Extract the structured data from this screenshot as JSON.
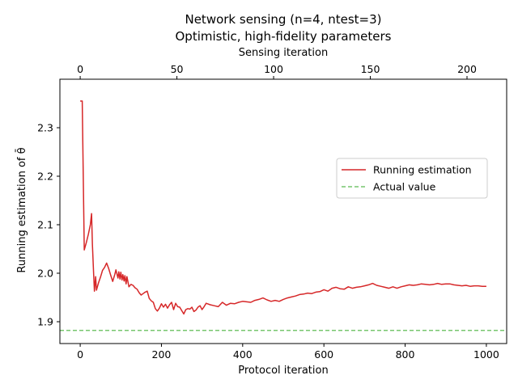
{
  "chart_data": {
    "type": "line",
    "title": "Network sensing (n=4, ntest=3)",
    "subtitle": "Optimistic, high-fidelity parameters",
    "xlabel": "Protocol iteration",
    "ylabel": "Running estimation of θ̄",
    "x2label": "Sensing iteration",
    "xlim": [
      -50,
      1050
    ],
    "ylim": [
      1.855,
      2.4
    ],
    "x2lim": [
      -10.5,
      220.5
    ],
    "x_ticks": [
      0,
      200,
      400,
      600,
      800,
      1000
    ],
    "x_tick_labels": [
      "0",
      "200",
      "400",
      "600",
      "800",
      "1000"
    ],
    "y_ticks": [
      1.9,
      2.0,
      2.1,
      2.2,
      2.3
    ],
    "y_tick_labels": [
      "1.9",
      "2.0",
      "2.1",
      "2.2",
      "2.3"
    ],
    "x2_ticks": [
      0,
      50,
      100,
      150,
      200
    ],
    "x2_tick_labels": [
      "0",
      "50",
      "100",
      "150",
      "200"
    ],
    "grid": false,
    "legend_position": "center-right",
    "series": [
      {
        "name": "Running estimation",
        "color": "#d62728",
        "style": "solid",
        "x": [
          0,
          5,
          10,
          15,
          20,
          25,
          28,
          30,
          33,
          35,
          38,
          40,
          45,
          50,
          55,
          60,
          65,
          70,
          75,
          80,
          85,
          88,
          90,
          93,
          95,
          98,
          100,
          103,
          105,
          108,
          110,
          113,
          115,
          120,
          125,
          130,
          135,
          140,
          145,
          150,
          155,
          160,
          165,
          170,
          175,
          180,
          185,
          190,
          195,
          200,
          205,
          210,
          215,
          220,
          225,
          230,
          235,
          240,
          245,
          250,
          255,
          260,
          265,
          270,
          275,
          280,
          285,
          290,
          295,
          300,
          305,
          310,
          320,
          330,
          340,
          350,
          360,
          370,
          380,
          390,
          400,
          410,
          420,
          430,
          440,
          450,
          460,
          470,
          480,
          490,
          500,
          510,
          520,
          530,
          540,
          550,
          560,
          570,
          580,
          590,
          600,
          610,
          620,
          630,
          640,
          650,
          660,
          670,
          680,
          690,
          700,
          710,
          720,
          730,
          740,
          750,
          760,
          770,
          780,
          790,
          800,
          810,
          820,
          830,
          840,
          850,
          860,
          870,
          880,
          890,
          900,
          910,
          920,
          930,
          940,
          950,
          960,
          970,
          980,
          990,
          1000
        ],
        "values": [
          2.355,
          2.355,
          2.048,
          2.063,
          2.08,
          2.1,
          2.123,
          2.06,
          2.0,
          1.963,
          1.993,
          1.965,
          1.98,
          1.992,
          2.006,
          2.012,
          2.021,
          2.01,
          1.996,
          1.983,
          1.997,
          2.007,
          2.0,
          1.99,
          2.003,
          1.988,
          2.002,
          1.986,
          1.997,
          1.984,
          1.995,
          1.978,
          1.993,
          1.972,
          1.977,
          1.975,
          1.97,
          1.967,
          1.96,
          1.955,
          1.958,
          1.961,
          1.963,
          1.948,
          1.943,
          1.94,
          1.927,
          1.922,
          1.928,
          1.937,
          1.93,
          1.936,
          1.928,
          1.935,
          1.94,
          1.925,
          1.938,
          1.931,
          1.93,
          1.923,
          1.916,
          1.925,
          1.927,
          1.926,
          1.93,
          1.921,
          1.924,
          1.93,
          1.933,
          1.925,
          1.931,
          1.938,
          1.935,
          1.933,
          1.931,
          1.94,
          1.934,
          1.938,
          1.937,
          1.94,
          1.942,
          1.941,
          1.94,
          1.944,
          1.946,
          1.949,
          1.945,
          1.942,
          1.944,
          1.942,
          1.946,
          1.949,
          1.951,
          1.953,
          1.956,
          1.957,
          1.959,
          1.958,
          1.961,
          1.962,
          1.966,
          1.963,
          1.969,
          1.971,
          1.968,
          1.967,
          1.972,
          1.969,
          1.971,
          1.972,
          1.974,
          1.976,
          1.979,
          1.975,
          1.973,
          1.971,
          1.969,
          1.972,
          1.969,
          1.972,
          1.974,
          1.976,
          1.975,
          1.976,
          1.978,
          1.977,
          1.976,
          1.977,
          1.979,
          1.977,
          1.978,
          1.978,
          1.976,
          1.975,
          1.974,
          1.975,
          1.973,
          1.974,
          1.974,
          1.973,
          1.973
        ]
      },
      {
        "name": "Actual value",
        "color": "#77c66e",
        "style": "dashed",
        "x": [
          -50,
          1050
        ],
        "values": [
          1.882,
          1.882
        ]
      }
    ]
  }
}
